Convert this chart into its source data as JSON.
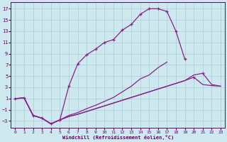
{
  "xlabel": "Windchill (Refroidissement éolien,°C)",
  "background_color": "#cde8ee",
  "grid_color": "#aacdd6",
  "line_color": "#882288",
  "xlim": [
    -0.5,
    23.5
  ],
  "ylim": [
    -4.2,
    18.2
  ],
  "xticks": [
    0,
    1,
    2,
    3,
    4,
    5,
    6,
    7,
    8,
    9,
    10,
    11,
    12,
    13,
    14,
    15,
    16,
    17,
    18,
    19,
    20,
    21,
    22,
    23
  ],
  "yticks": [
    -3,
    -1,
    1,
    3,
    5,
    7,
    9,
    11,
    13,
    15,
    17
  ],
  "curve1_x": [
    0,
    1,
    2,
    3,
    4,
    5,
    6,
    7,
    8,
    9,
    10,
    11,
    12,
    13,
    14,
    15,
    16,
    17,
    18,
    19
  ],
  "curve1_y": [
    1.0,
    1.1,
    -2.0,
    -2.5,
    -3.5,
    -2.8,
    3.2,
    7.2,
    8.8,
    9.8,
    11.0,
    11.5,
    13.2,
    14.2,
    16.0,
    17.0,
    17.0,
    16.5,
    13.0,
    8.0
  ],
  "curve2_x": [
    0,
    1,
    2,
    3,
    4,
    5,
    6,
    7,
    8,
    9,
    10,
    11,
    12,
    13,
    14,
    15,
    16,
    17
  ],
  "curve2_y": [
    1.0,
    1.1,
    -2.0,
    -2.5,
    -3.5,
    -2.8,
    -2.0,
    -1.5,
    -0.8,
    -0.2,
    0.5,
    1.2,
    2.2,
    3.2,
    4.5,
    5.2,
    6.5,
    7.5
  ],
  "curve3_x": [
    0,
    1,
    2,
    3,
    4,
    5,
    6,
    7,
    8,
    9,
    10,
    11,
    12,
    13,
    14,
    15,
    16,
    17,
    18,
    19,
    20,
    21,
    22,
    23
  ],
  "curve3_y": [
    1.0,
    1.1,
    -2.0,
    -2.5,
    -3.5,
    -2.8,
    -2.2,
    -1.8,
    -1.3,
    -0.8,
    -0.3,
    0.2,
    0.7,
    1.2,
    1.7,
    2.2,
    2.7,
    3.2,
    3.7,
    4.2,
    4.8,
    3.5,
    3.3,
    3.2
  ],
  "curve4_x": [
    0,
    1,
    2,
    3,
    4,
    5,
    6,
    7,
    8,
    9,
    10,
    11,
    12,
    13,
    14,
    15,
    16,
    17,
    18,
    19,
    20,
    21,
    22,
    23
  ],
  "curve4_y": [
    1.0,
    1.1,
    -2.0,
    -2.5,
    -3.5,
    -2.8,
    -2.2,
    -1.8,
    -1.3,
    -0.8,
    -0.3,
    0.2,
    0.7,
    1.2,
    1.7,
    2.2,
    2.7,
    3.2,
    3.7,
    4.2,
    5.2,
    5.5,
    3.5,
    3.2
  ]
}
